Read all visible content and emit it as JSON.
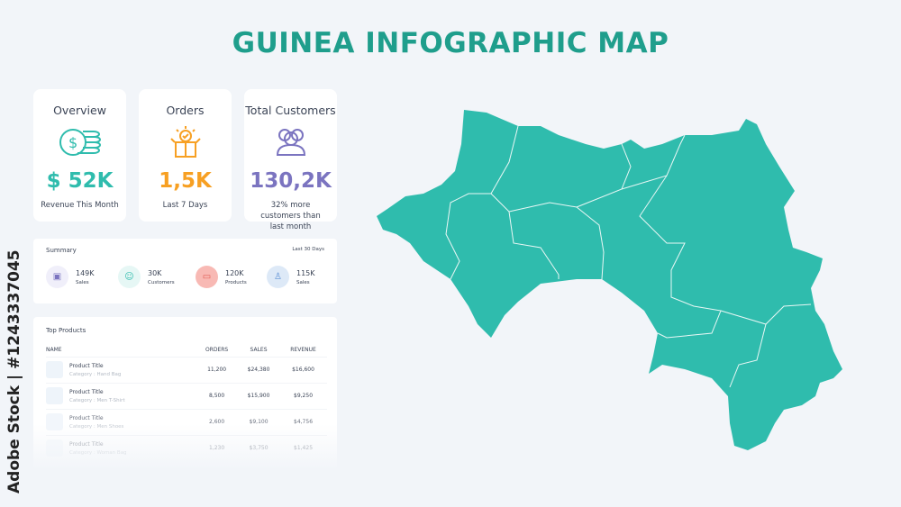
{
  "title": "GUINEA INFOGRAPHIC MAP",
  "colors": {
    "accent": "#2fbcad",
    "orange": "#f7a023",
    "purple": "#7b74c0"
  },
  "kpis": [
    {
      "title": "Overview",
      "icon": "dollar-coins-icon",
      "value": "$ 52K",
      "sub": "Revenue This Month",
      "color": "#2fbcad"
    },
    {
      "title": "Orders",
      "icon": "open-box-icon",
      "value": "1,5K",
      "sub": "Last 7 Days",
      "color": "#f7a023"
    },
    {
      "title": "Total Customers",
      "icon": "users-icon",
      "value": "130,2K",
      "sub": "32% more customers than last month",
      "color": "#7b74c0"
    }
  ],
  "summary": {
    "title": "Summary",
    "range": "Last 30 Days",
    "items": [
      {
        "value": "149K",
        "label": "Sales",
        "icon": "sales-icon"
      },
      {
        "value": "30K",
        "label": "Customers",
        "icon": "customer-icon"
      },
      {
        "value": "120K",
        "label": "Products",
        "icon": "folder-icon"
      },
      {
        "value": "115K",
        "label": "Sales",
        "icon": "bag-icon"
      }
    ]
  },
  "products": {
    "title": "Top Products",
    "headers": [
      "NAME",
      "ORDERS",
      "SALES",
      "REVENUE"
    ],
    "rows": [
      {
        "name": "Product Title",
        "category": "Category : Hand Bag",
        "orders": "11,200",
        "sales": "$24,380",
        "revenue": "$16,600"
      },
      {
        "name": "Product Title",
        "category": "Category : Men T-Shirt",
        "orders": "8,500",
        "sales": "$15,900",
        "revenue": "$9,250"
      },
      {
        "name": "Product Title",
        "category": "Category : Men Shoes",
        "orders": "2,600",
        "sales": "$9,100",
        "revenue": "$4,756"
      },
      {
        "name": "Product Title",
        "category": "Category : Woman Bag",
        "orders": "1,230",
        "sales": "$3,750",
        "revenue": "$1,425"
      }
    ]
  },
  "watermark": "Adobe Stock | #1243337045"
}
